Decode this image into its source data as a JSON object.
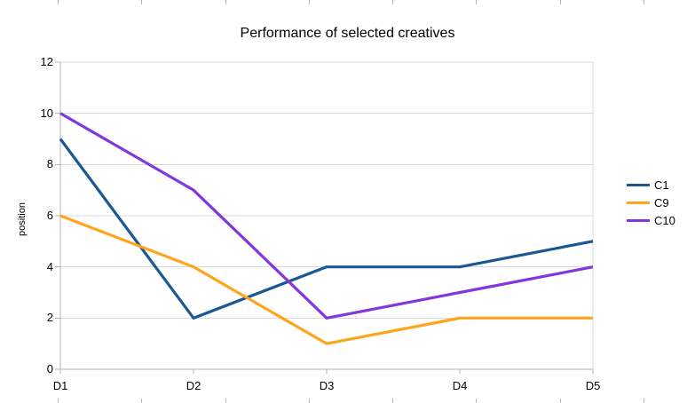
{
  "chart_data": {
    "type": "line",
    "title": "Performance of selected creatives",
    "xlabel": "",
    "ylabel": "position",
    "categories": [
      "D1",
      "D2",
      "D3",
      "D4",
      "D5"
    ],
    "series": [
      {
        "name": "C1",
        "color": "#1a5795",
        "values": [
          9,
          2,
          4,
          4,
          5
        ]
      },
      {
        "name": "C9",
        "color": "#ffa41b",
        "values": [
          6,
          4,
          1,
          2,
          2
        ]
      },
      {
        "name": "C10",
        "color": "#8237de",
        "values": [
          10,
          7,
          2,
          3,
          4
        ]
      }
    ],
    "ylim": [
      0,
      12
    ],
    "y_tick_step": 2,
    "y_tick_labels": [
      "0",
      "2",
      "4",
      "6",
      "8",
      "10",
      "12"
    ],
    "grid": "horizontal",
    "legend_position": "right"
  },
  "colors": {
    "gridline": "#d9d9d9",
    "axis": "#b3b3b3",
    "plot_border": "#d9d9d9",
    "text": "#000000",
    "ruler_tick": "#b2b6bd",
    "background": "#ffffff"
  }
}
